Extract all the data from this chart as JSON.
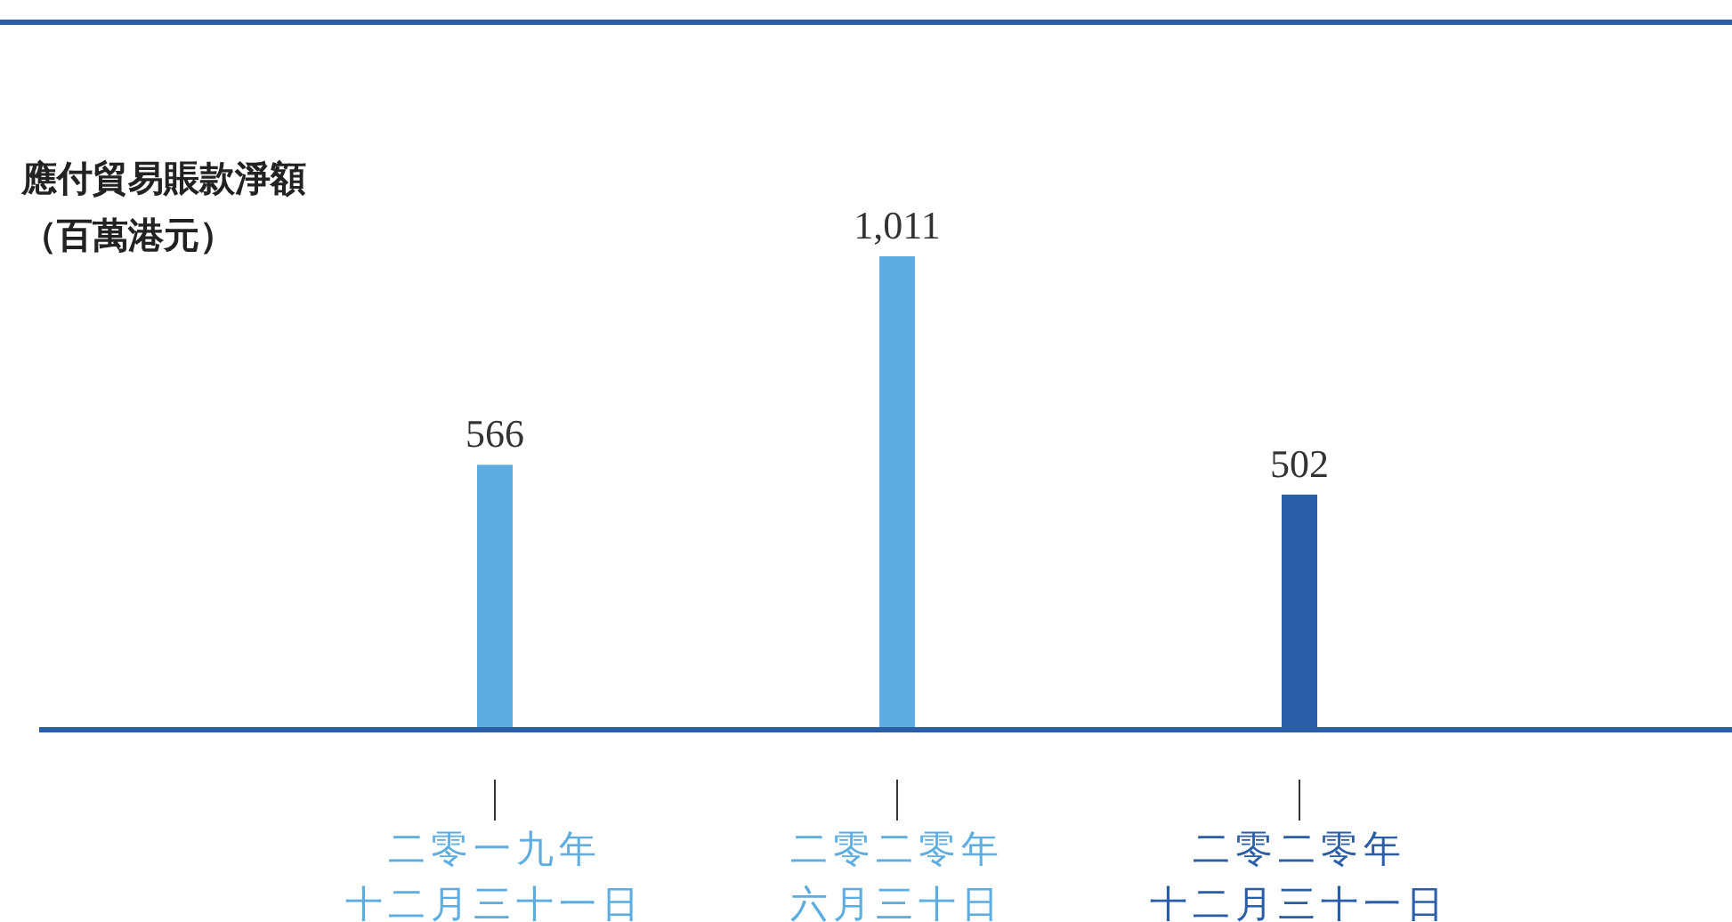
{
  "chart_data": {
    "type": "bar",
    "ylabel": "應付貿易賬款淨額（百萬港元）",
    "categories": [
      "二零一九年十二月三十一日",
      "二零二零年六月三十日",
      "二零二零年十二月三十一日"
    ],
    "values": [
      566,
      1011,
      502
    ],
    "colors": [
      "#5dade2",
      "#5dade2",
      "#2a5ea8"
    ],
    "value_labels": [
      "566",
      "1,011",
      "502"
    ],
    "grid": false,
    "legend": false
  }
}
